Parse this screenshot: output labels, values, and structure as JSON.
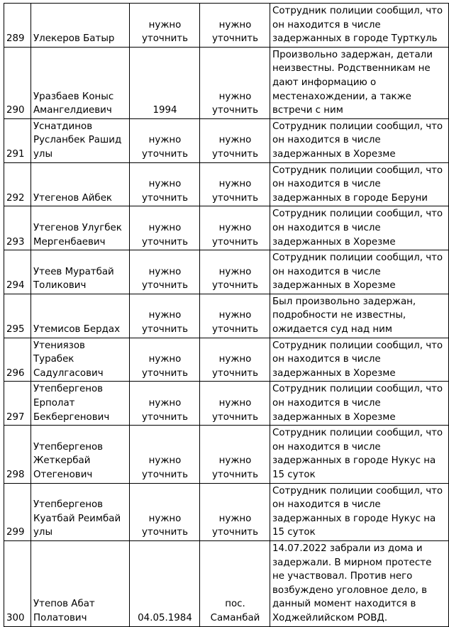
{
  "rows": [
    {
      "num": "289",
      "name": [
        "Улекеров Батыр"
      ],
      "birth": [
        "нужно",
        "уточнить"
      ],
      "place": [
        "нужно",
        "уточнить"
      ],
      "note": [
        "Сотрудник полиции сообщил, что",
        "он находится в числе",
        "задержанных в городе Турткуль"
      ]
    },
    {
      "num": "290",
      "name": [
        "Уразбаев Коныс",
        "Амангелдиевич"
      ],
      "birth": [
        "1994"
      ],
      "place": [
        "нужно",
        "уточнить"
      ],
      "note": [
        "Произвольно задержан, детали",
        "неизвестны. Родственникам не",
        "дают информацию о",
        "местенахождении, а также",
        "встречи с ним"
      ]
    },
    {
      "num": "291",
      "name": [
        "Уснатдинов",
        "Русланбек Рашид",
        "улы"
      ],
      "birth": [
        "нужно",
        "уточнить"
      ],
      "place": [
        "нужно",
        "уточнить"
      ],
      "note": [
        "Сотрудник полиции сообщил, что",
        "он находится в числе",
        "задержанных в Хорезме"
      ]
    },
    {
      "num": "292",
      "name": [
        "Утегенов Айбек"
      ],
      "birth": [
        "нужно",
        "уточнить"
      ],
      "place": [
        "нужно",
        "уточнить"
      ],
      "note": [
        "Сотрудник полиции сообщил, что",
        "он находится в числе",
        "задержанных в городе Беруни"
      ]
    },
    {
      "num": "293",
      "name": [
        "Утегенов Улугбек",
        "Мергенбаевич"
      ],
      "birth": [
        "нужно",
        "уточнить"
      ],
      "place": [
        "нужно",
        "уточнить"
      ],
      "note": [
        "Сотрудник полиции сообщил, что",
        "он находится в числе",
        "задержанных в Хорезме"
      ]
    },
    {
      "num": "294",
      "name": [
        "Утеев Муратбай",
        "Толикович"
      ],
      "birth": [
        "нужно",
        "уточнить"
      ],
      "place": [
        "нужно",
        "уточнить"
      ],
      "note": [
        "Сотрудник полиции сообщил, что",
        "он находится в числе",
        "задержанных в Хорезме"
      ]
    },
    {
      "num": "295",
      "name": [
        "Утемисов Бердах"
      ],
      "birth": [
        "нужно",
        "уточнить"
      ],
      "place": [
        "нужно",
        "уточнить"
      ],
      "note": [
        "Был произвольно задержан,",
        "подробности не известны,",
        "ожидается суд над ним"
      ]
    },
    {
      "num": "296",
      "name": [
        "Утениязов",
        "Турабек",
        "Садулгасович"
      ],
      "birth": [
        "нужно",
        "уточнить"
      ],
      "place": [
        "нужно",
        "уточнить"
      ],
      "note": [
        "Сотрудник полиции сообщил, что",
        "он находится в числе",
        "задержанных в Хорезме"
      ]
    },
    {
      "num": "297",
      "name": [
        "Утепбергенов",
        "Ерполат",
        "Бекбергенович"
      ],
      "birth": [
        "нужно",
        "уточнить"
      ],
      "place": [
        "нужно",
        "уточнить"
      ],
      "note": [
        "Сотрудник полиции сообщил, что",
        "он находится в числе",
        "задержанных в Хорезме"
      ]
    },
    {
      "num": "298",
      "name": [
        "Утепбергенов",
        "Жеткербай",
        "Отегенович"
      ],
      "birth": [
        "нужно",
        "уточнить"
      ],
      "place": [
        "нужно",
        "уточнить"
      ],
      "note": [
        "Сотрудник полиции сообщил, что",
        "он находится в числе",
        "задержанных в городе Нукус на",
        "15 суток"
      ]
    },
    {
      "num": "299",
      "name": [
        "Утепбергенов",
        "Куатбай Реимбай",
        "улы"
      ],
      "birth": [
        "нужно",
        "уточнить"
      ],
      "place": [
        "нужно",
        "уточнить"
      ],
      "note": [
        "Сотрудник полиции сообщил, что",
        "он находится в числе",
        "задержанных в городе Нукус на",
        "15 суток"
      ]
    },
    {
      "num": "300",
      "name": [
        "Утепов Абат",
        "Полатович"
      ],
      "birth": [
        "04.05.1984"
      ],
      "place": [
        "пос.",
        "Саманбай"
      ],
      "note": [
        "14.07.2022 забрали из дома и",
        "задержали. В мирном протесте",
        "не участвовал. Против него",
        "возбуждено уголовное дело, в",
        "данный момент находится в",
        "Ходжейлийском РОВД."
      ]
    }
  ]
}
